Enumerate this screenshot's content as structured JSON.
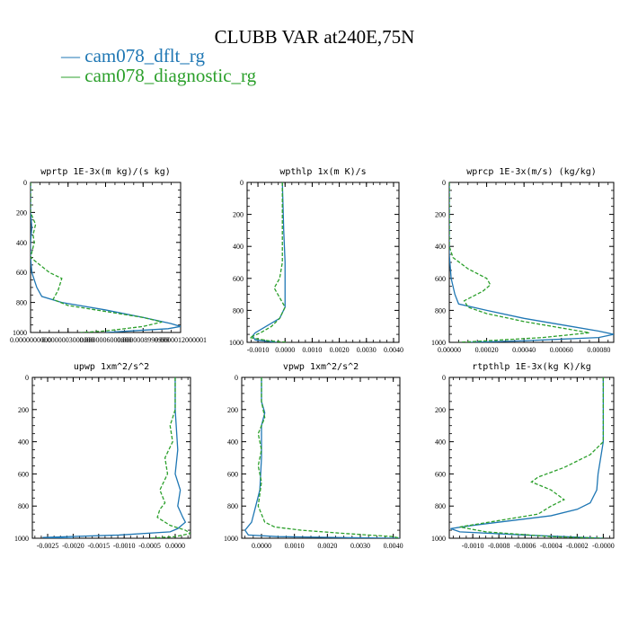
{
  "title": "CLUBB VAR at240E,75N",
  "colors": {
    "blue": "#1f77b4",
    "green": "#2ca02c"
  },
  "legend": [
    {
      "label": "cam078_dflt_rg",
      "color": "#1f77b4",
      "dash": "solid"
    },
    {
      "label": "cam078_diagnostic_rg",
      "color": "#2ca02c",
      "dash": "dashed"
    }
  ],
  "chart_data": [
    {
      "type": "line",
      "title": "wprtp  1E-3x(m kg)/(s kg)",
      "xlim": [
        0,
        1.2e-06
      ],
      "ylim": [
        1000,
        0
      ],
      "y_ticks": [
        0,
        200,
        400,
        600,
        800,
        1000
      ],
      "x_ticks": [
        0,
        3e-07,
        6e-07,
        9e-07,
        1.2e-06
      ],
      "x_tick_labels": [
        "0.0000000000",
        "0.0000003000000",
        "0.0000006000000",
        "0.0000008999999",
        "0.0000012000001"
      ],
      "x_tick_label_anchor": "middle",
      "series": [
        {
          "name": "cam078_dflt_rg",
          "points": [
            [
              0,
              0
            ],
            [
              0,
              200
            ],
            [
              1e-08,
              300
            ],
            [
              0,
              400
            ],
            [
              0,
              500
            ],
            [
              1e-08,
              600
            ],
            [
              5e-08,
              700
            ],
            [
              9e-08,
              760
            ],
            [
              2.5e-07,
              800
            ],
            [
              6e-07,
              850
            ],
            [
              9e-07,
              900
            ],
            [
              1.12e-06,
              940
            ],
            [
              1.2e-06,
              960
            ],
            [
              1.1e-06,
              975
            ],
            [
              8e-07,
              990
            ],
            [
              6e-07,
              1000
            ]
          ]
        },
        {
          "name": "cam078_diagnostic_rg",
          "points": [
            [
              0,
              0
            ],
            [
              0,
              200
            ],
            [
              4e-08,
              280
            ],
            [
              2e-08,
              350
            ],
            [
              3e-08,
              400
            ],
            [
              0,
              500
            ],
            [
              1.5e-07,
              600
            ],
            [
              2.5e-07,
              640
            ],
            [
              2.2e-07,
              720
            ],
            [
              1.8e-07,
              780
            ],
            [
              3e-07,
              820
            ],
            [
              6e-07,
              860
            ],
            [
              9e-07,
              900
            ],
            [
              1.05e-06,
              930
            ],
            [
              9e-07,
              960
            ],
            [
              6e-07,
              990
            ],
            [
              4e-07,
              1000
            ]
          ]
        }
      ]
    },
    {
      "type": "line",
      "title": "wpthlp  1x(m K)/s",
      "xlim": [
        -0.0014,
        0.0042
      ],
      "ylim": [
        1000,
        0
      ],
      "y_ticks": [
        0,
        200,
        400,
        600,
        800,
        1000
      ],
      "x_ticks": [
        -0.001,
        0,
        0.001,
        0.002,
        0.003,
        0.004
      ],
      "x_tick_labels": [
        "-0.0010",
        "0.0000",
        "0.0010",
        "0.0020",
        "0.0030",
        "0.0040"
      ],
      "x_tick_label_anchor": "middle",
      "series": [
        {
          "name": "cam078_dflt_rg",
          "points": [
            [
              -0.0001,
              0
            ],
            [
              -5e-05,
              300
            ],
            [
              0,
              500
            ],
            [
              0,
              700
            ],
            [
              0,
              780
            ],
            [
              -0.0002,
              850
            ],
            [
              -0.0007,
              900
            ],
            [
              -0.0011,
              940
            ],
            [
              -0.0012,
              960
            ],
            [
              -0.0011,
              985
            ],
            [
              -0.0003,
              1000
            ]
          ]
        },
        {
          "name": "cam078_diagnostic_rg",
          "points": [
            [
              -0.0001,
              0
            ],
            [
              -0.0001,
              300
            ],
            [
              -0.0001,
              500
            ],
            [
              -0.0002,
              600
            ],
            [
              -0.0004,
              660
            ],
            [
              -0.0002,
              720
            ],
            [
              0,
              780
            ],
            [
              -0.0002,
              850
            ],
            [
              -0.0005,
              900
            ],
            [
              -0.0009,
              940
            ],
            [
              -0.0013,
              970
            ],
            [
              -0.0006,
              990
            ],
            [
              0.0001,
              1000
            ]
          ]
        }
      ]
    },
    {
      "type": "line",
      "title": "wprcp  1E-3x(m/s) (kg/kg)",
      "xlim": [
        0,
        0.00088
      ],
      "ylim": [
        1000,
        0
      ],
      "y_ticks": [
        0,
        200,
        400,
        600,
        800,
        1000
      ],
      "x_ticks": [
        0,
        0.0002,
        0.0004,
        0.0006,
        0.0008
      ],
      "x_tick_labels": [
        "0.00000",
        "0.00020",
        "0.00040",
        "0.00060",
        "0.00080"
      ],
      "x_tick_label_anchor": "middle",
      "series": [
        {
          "name": "cam078_dflt_rg",
          "points": [
            [
              0,
              0
            ],
            [
              0,
              300
            ],
            [
              0,
              450
            ],
            [
              1e-05,
              600
            ],
            [
              3e-05,
              700
            ],
            [
              5e-05,
              760
            ],
            [
              0.0002,
              800
            ],
            [
              0.0004,
              850
            ],
            [
              0.00065,
              900
            ],
            [
              0.0008,
              930
            ],
            [
              0.00088,
              950
            ],
            [
              0.0008,
              970
            ],
            [
              0.0004,
              990
            ],
            [
              0.0001,
              1000
            ]
          ]
        },
        {
          "name": "cam078_diagnostic_rg",
          "points": [
            [
              0,
              0
            ],
            [
              0,
              400
            ],
            [
              2e-05,
              470
            ],
            [
              0.0001,
              540
            ],
            [
              0.0002,
              600
            ],
            [
              0.00022,
              640
            ],
            [
              0.00018,
              680
            ],
            [
              8e-05,
              740
            ],
            [
              0.0001,
              780
            ],
            [
              0.0002,
              820
            ],
            [
              0.0004,
              870
            ],
            [
              0.0006,
              910
            ],
            [
              0.00075,
              940
            ],
            [
              0.0005,
              970
            ],
            [
              0.0002,
              990
            ],
            [
              5e-05,
              1000
            ]
          ]
        }
      ]
    },
    {
      "type": "line",
      "title": "upwp  1xm^2/s^2",
      "xlim": [
        -0.0028,
        0.0003
      ],
      "ylim": [
        1000,
        0
      ],
      "y_ticks": [
        0,
        200,
        400,
        600,
        800,
        1000
      ],
      "x_ticks": [
        -0.0025,
        -0.002,
        -0.0015,
        -0.001,
        -0.0005,
        0
      ],
      "x_tick_labels": [
        "-0.0025",
        "-0.0020",
        "-0.0015",
        "-0.0010",
        "-0.0005",
        "0.0000"
      ],
      "x_tick_label_anchor": "middle",
      "series": [
        {
          "name": "cam078_dflt_rg",
          "points": [
            [
              0,
              0
            ],
            [
              0,
              200
            ],
            [
              2e-05,
              300
            ],
            [
              5e-05,
              450
            ],
            [
              0,
              600
            ],
            [
              0.0001,
              700
            ],
            [
              5e-05,
              800
            ],
            [
              0.00015,
              870
            ],
            [
              0.0002,
              900
            ],
            [
              5e-05,
              940
            ],
            [
              -0.0001,
              960
            ],
            [
              -0.0011,
              980
            ],
            [
              -0.0026,
              995
            ],
            [
              -0.002,
              1000
            ]
          ]
        },
        {
          "name": "cam078_diagnostic_rg",
          "points": [
            [
              0,
              0
            ],
            [
              0,
              200
            ],
            [
              -0.0001,
              300
            ],
            [
              -5e-05,
              400
            ],
            [
              -0.0002,
              500
            ],
            [
              -0.00015,
              600
            ],
            [
              -0.0003,
              700
            ],
            [
              -0.0002,
              780
            ],
            [
              -0.0003,
              820
            ],
            [
              -0.00035,
              870
            ],
            [
              -0.0001,
              920
            ],
            [
              0.0002,
              950
            ],
            [
              0.0003,
              970
            ],
            [
              0,
              990
            ],
            [
              -0.0005,
              1000
            ]
          ]
        }
      ]
    },
    {
      "type": "line",
      "title": "vpwp  1xm^2/s^2",
      "xlim": [
        -0.0006,
        0.0042
      ],
      "ylim": [
        1000,
        0
      ],
      "y_ticks": [
        0,
        200,
        400,
        600,
        800,
        1000
      ],
      "x_ticks": [
        0,
        0.001,
        0.002,
        0.003,
        0.004
      ],
      "x_tick_labels": [
        "0.0000",
        "0.0010",
        "0.0020",
        "0.0030",
        "0.0040"
      ],
      "x_tick_label_anchor": "middle",
      "series": [
        {
          "name": "cam078_dflt_rg",
          "points": [
            [
              0,
              0
            ],
            [
              0,
              150
            ],
            [
              0.0001,
              220
            ],
            [
              5e-05,
              260
            ],
            [
              0,
              300
            ],
            [
              0,
              500
            ],
            [
              -5e-05,
              700
            ],
            [
              -0.0002,
              820
            ],
            [
              -0.0003,
              900
            ],
            [
              -0.0005,
              950
            ],
            [
              -0.0004,
              980
            ],
            [
              0.0005,
              990
            ],
            [
              0.0025,
              996
            ],
            [
              0.0042,
              1000
            ]
          ]
        },
        {
          "name": "cam078_diagnostic_rg",
          "points": [
            [
              0,
              0
            ],
            [
              0,
              150
            ],
            [
              0.0001,
              250
            ],
            [
              -0.0001,
              350
            ],
            [
              0,
              450
            ],
            [
              -0.0001,
              550
            ],
            [
              0,
              650
            ],
            [
              -0.0001,
              800
            ],
            [
              0.0001,
              900
            ],
            [
              0.0004,
              930
            ],
            [
              0.0012,
              950
            ],
            [
              0.0025,
              970
            ],
            [
              0.004,
              990
            ],
            [
              0.0042,
              1000
            ]
          ]
        }
      ]
    },
    {
      "type": "line",
      "title": "rtpthlp  1E-3x(kg K)/kg",
      "xlim": [
        -0.00118,
        8e-05
      ],
      "ylim": [
        1000,
        0
      ],
      "y_ticks": [
        0,
        200,
        400,
        600,
        800,
        1000
      ],
      "x_ticks": [
        -0.001,
        -0.0008,
        -0.0006,
        -0.0004,
        -0.0002,
        0
      ],
      "x_tick_labels": [
        "-0.0010",
        "-0.0008",
        "-0.0006",
        "-0.0004",
        "-0.0002",
        "-0.0000"
      ],
      "x_tick_label_anchor": "start",
      "series": [
        {
          "name": "cam078_dflt_rg",
          "points": [
            [
              0,
              0
            ],
            [
              0,
              400
            ],
            [
              -2e-05,
              500
            ],
            [
              -4e-05,
              600
            ],
            [
              -5e-05,
              700
            ],
            [
              -0.0001,
              780
            ],
            [
              -0.0002,
              820
            ],
            [
              -0.0004,
              860
            ],
            [
              -0.0007,
              890
            ],
            [
              -0.001,
              920
            ],
            [
              -0.00117,
              940
            ],
            [
              -0.0011,
              960
            ],
            [
              -0.0006,
              980
            ],
            [
              0,
              1000
            ]
          ]
        },
        {
          "name": "cam078_diagnostic_rg",
          "points": [
            [
              0,
              0
            ],
            [
              0,
              400
            ],
            [
              -0.0001,
              480
            ],
            [
              -0.0003,
              560
            ],
            [
              -0.0005,
              620
            ],
            [
              -0.00055,
              650
            ],
            [
              -0.0004,
              700
            ],
            [
              -0.0003,
              760
            ],
            [
              -0.0004,
              800
            ],
            [
              -0.0005,
              850
            ],
            [
              -0.0008,
              890
            ],
            [
              -0.0011,
              930
            ],
            [
              -0.0009,
              960
            ],
            [
              -0.0004,
              990
            ],
            [
              0,
              1000
            ]
          ]
        }
      ]
    }
  ]
}
